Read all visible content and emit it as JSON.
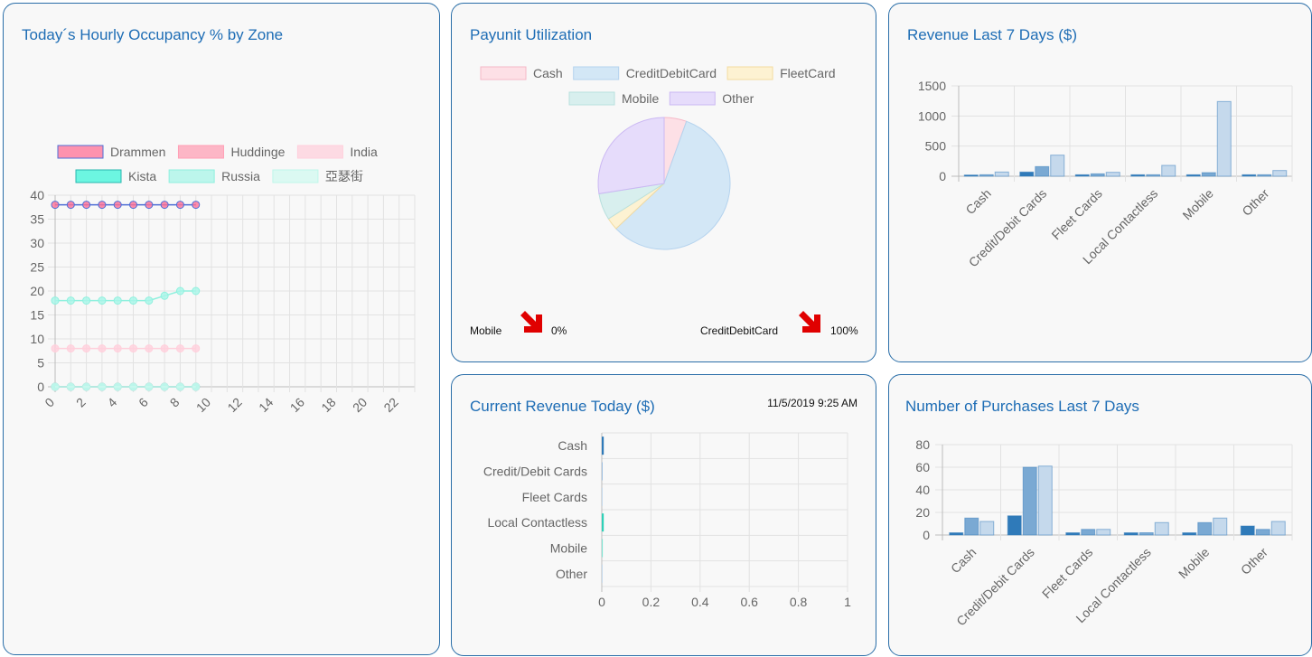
{
  "cards": {
    "occupancy": {
      "title": "Today´s Hourly Occupancy % by Zone"
    },
    "payunit": {
      "title": "Payunit Utilization"
    },
    "revenue7": {
      "title": "Revenue Last 7 Days ($)"
    },
    "current": {
      "title": "Current Revenue Today ($)",
      "timestamp": "11/5/2019 9:25 AM"
    },
    "purchases7": {
      "title": "Number of Purchases Last 7 Days"
    }
  },
  "colors": {
    "card_border": "#2a6ea8",
    "title": "#1e6db5",
    "arrow": "#e00000",
    "bar_dark": "#2f7ab9",
    "bar_mid": "#7aa9d3",
    "bar_light": "#c5d9ec"
  },
  "indicators": {
    "left": {
      "label": "Mobile",
      "value": "0%",
      "icon": "down-right-arrow-icon"
    },
    "right": {
      "label": "CreditDebitCard",
      "value": "100%",
      "icon": "down-right-arrow-icon"
    }
  },
  "chart_data": [
    {
      "id": "occupancy",
      "type": "line",
      "title": "Today´s Hourly Occupancy % by Zone",
      "x": [
        0,
        1,
        2,
        3,
        4,
        5,
        6,
        7,
        8,
        9
      ],
      "x_ticks": [
        "0",
        "2",
        "4",
        "6",
        "8",
        "10",
        "12",
        "14",
        "16",
        "18",
        "20",
        "22"
      ],
      "xlim": [
        0,
        23
      ],
      "ylim": [
        0,
        40
      ],
      "y_ticks": [
        "0",
        "5",
        "10",
        "15",
        "20",
        "25",
        "30",
        "35",
        "40"
      ],
      "legend_position": "top",
      "grid": true,
      "series": [
        {
          "name": "Drammen",
          "values": [
            38,
            38,
            38,
            38,
            38,
            38,
            38,
            38,
            38,
            38
          ],
          "color": "#ff7096",
          "line": "#4f6fd6"
        },
        {
          "name": "Huddinge",
          "values": [
            0,
            0,
            0,
            0,
            0,
            0,
            0,
            0,
            0,
            0
          ],
          "color": "#ffa0b6",
          "line": "#ffa0b6"
        },
        {
          "name": "India",
          "values": [
            8,
            8,
            8,
            8,
            8,
            8,
            8,
            8,
            8,
            8
          ],
          "color": "#ffd0dc",
          "line": "#ffd0dc"
        },
        {
          "name": "Kista",
          "values": [
            0,
            0,
            0,
            0,
            0,
            0,
            0,
            0,
            0,
            0
          ],
          "color": "#3df5d9",
          "line": "#2ab7b0"
        },
        {
          "name": "Russia",
          "values": [
            18,
            18,
            18,
            18,
            18,
            18,
            18,
            19,
            20,
            20
          ],
          "color": "#a8f6e8",
          "line": "#8ff0de"
        },
        {
          "name": "亞瑟街",
          "values": [
            0,
            0,
            0,
            0,
            0,
            0,
            0,
            0,
            0,
            0
          ],
          "color": "#d2f9f0",
          "line": "#bff6ea"
        }
      ]
    },
    {
      "id": "payunit",
      "type": "pie",
      "title": "Payunit Utilization",
      "legend_position": "top",
      "slices": [
        {
          "name": "Cash",
          "value": 5.5,
          "color": "#fde0e6",
          "stroke": "#f5b8c7"
        },
        {
          "name": "CreditDebitCard",
          "value": 57.5,
          "color": "#d3e7f6",
          "stroke": "#b5d3ee"
        },
        {
          "name": "FleetCard",
          "value": 3,
          "color": "#fdf2d2",
          "stroke": "#f3dba0"
        },
        {
          "name": "Mobile",
          "value": 6.5,
          "color": "#d8efee",
          "stroke": "#b8e0de"
        },
        {
          "name": "Other",
          "value": 27.5,
          "color": "#e6dcfb",
          "stroke": "#cbb8f3"
        }
      ]
    },
    {
      "id": "revenue7",
      "type": "bar",
      "title": "Revenue Last 7 Days ($)",
      "categories": [
        "Cash",
        "Credit/Debit Cards",
        "Fleet Cards",
        "Local Contactless",
        "Mobile",
        "Other"
      ],
      "ylim": [
        0,
        1500
      ],
      "y_ticks": [
        "0",
        "500",
        "1000",
        "1500"
      ],
      "grid": true,
      "series": [
        {
          "values": [
            20,
            70,
            25,
            25,
            25,
            25
          ]
        },
        {
          "values": [
            25,
            160,
            40,
            25,
            60,
            25
          ]
        },
        {
          "values": [
            70,
            350,
            65,
            180,
            1240,
            95
          ]
        }
      ]
    },
    {
      "id": "current",
      "type": "bar",
      "orientation": "horizontal",
      "title": "Current Revenue Today ($)",
      "categories": [
        "Cash",
        "Credit/Debit Cards",
        "Fleet Cards",
        "Local Contactless",
        "Mobile",
        "Other"
      ],
      "values": [
        0.008,
        0.003,
        0.001,
        0.008,
        0.004,
        0.001
      ],
      "bar_colors": [
        "#2f7ab9",
        "#9fc0e0",
        "#c5d9ec",
        "#2ed1b8",
        "#7fe4d2",
        "#c5d9ec"
      ],
      "xlim": [
        0,
        1
      ],
      "x_ticks": [
        "0",
        "0.2",
        "0.4",
        "0.6",
        "0.8",
        "1"
      ],
      "grid": true
    },
    {
      "id": "purchases7",
      "type": "bar",
      "title": "Number of Purchases Last 7 Days",
      "categories": [
        "Cash",
        "Credit/Debit Cards",
        "Fleet Cards",
        "Local Contactless",
        "Mobile",
        "Other"
      ],
      "ylim": [
        0,
        80
      ],
      "y_ticks": [
        "0",
        "20",
        "40",
        "60",
        "80"
      ],
      "grid": true,
      "series": [
        {
          "values": [
            2,
            17,
            2,
            2,
            2,
            8
          ]
        },
        {
          "values": [
            15,
            60,
            5,
            2,
            11,
            5
          ]
        },
        {
          "values": [
            12,
            61,
            5,
            11,
            15,
            12
          ]
        }
      ]
    }
  ]
}
